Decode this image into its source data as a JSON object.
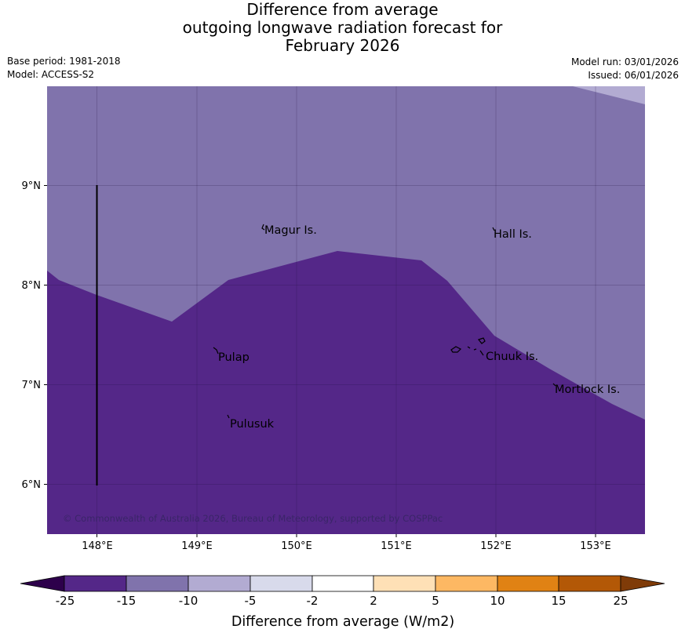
{
  "header": {
    "title_lines": [
      "Difference from average",
      "outgoing longwave radiation forecast for",
      "February 2026"
    ],
    "base_period": "Base period: 1981-2018",
    "model": "Model: ACCESS-S2",
    "model_run": "Model run: 03/01/2026",
    "issued": "Issued: 06/01/2026"
  },
  "map": {
    "lon_ticks": [
      "148°E",
      "149°E",
      "150°E",
      "151°E",
      "152°E",
      "153°E"
    ],
    "lat_ticks": [
      "9°N",
      "8°N",
      "7°N",
      "6°N"
    ],
    "places": [
      {
        "name": "Magur Is."
      },
      {
        "name": "Hall Is."
      },
      {
        "name": "Pulap"
      },
      {
        "name": "Chuuk Is."
      },
      {
        "name": "Mortlock Is."
      },
      {
        "name": "Pulusuk"
      }
    ],
    "copyright": "© Commonwealth of Australia 2026, Bureau of Meteorology, supported by COSPPac"
  },
  "colorbar": {
    "label": "Difference from average (W/m2)",
    "ticks": [
      "-25",
      "-15",
      "-10",
      "-5",
      "-2",
      "2",
      "5",
      "10",
      "15",
      "25"
    ],
    "colors": [
      "#2d004b",
      "#542788",
      "#8073ac",
      "#b2abd2",
      "#d8daeb",
      "#ffffff",
      "#fee0b6",
      "#fdb863",
      "#e08214",
      "#b35806",
      "#7f3b08"
    ]
  },
  "colors": {
    "zone_strong": "#542788",
    "zone_moderate": "#8073ac",
    "zone_light": "#b2abd2"
  }
}
